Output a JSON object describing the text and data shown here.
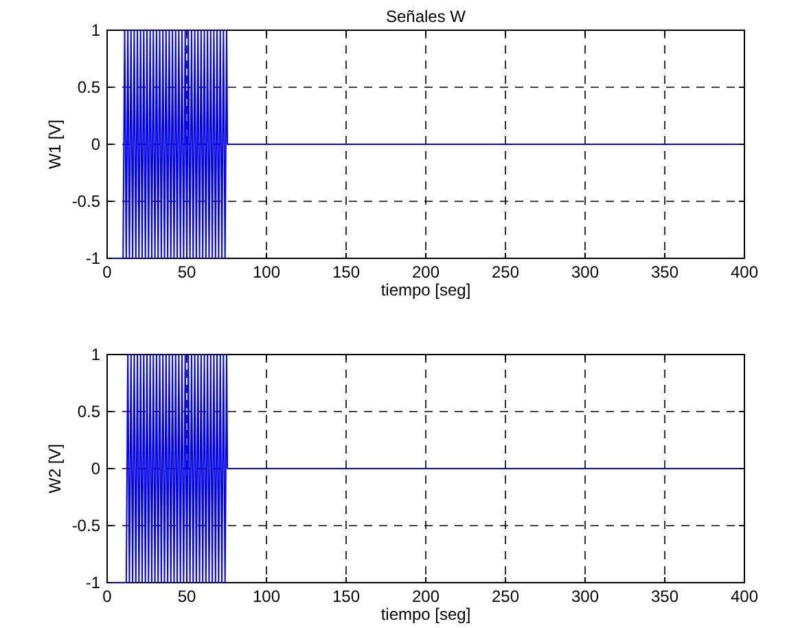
{
  "chart_data": [
    {
      "type": "line",
      "title": "Señales W",
      "xlabel": "tiempo [seg]",
      "ylabel": "W1 [V]",
      "xlim": [
        0,
        400
      ],
      "ylim": [
        -1,
        1
      ],
      "xticks": [
        0,
        50,
        100,
        150,
        200,
        250,
        300,
        350,
        400
      ],
      "yticks": [
        -1,
        -0.5,
        0,
        0.5,
        1
      ],
      "grid": true,
      "series": [
        {
          "color": "#0000ff",
          "x": [
            0,
            10,
            11,
            12,
            13,
            14,
            15,
            16,
            17,
            18,
            19,
            20,
            21,
            22,
            23,
            24,
            25,
            26,
            27,
            28,
            29,
            30,
            31,
            32,
            33,
            34,
            35,
            36,
            37,
            38,
            39,
            40,
            41,
            42,
            43,
            44,
            45,
            46,
            47,
            48,
            49,
            50,
            51,
            52,
            53,
            54,
            55,
            56,
            57,
            58,
            59,
            60,
            61,
            62,
            63,
            64,
            65,
            66,
            67,
            68,
            69,
            70,
            71,
            72,
            73,
            74,
            75,
            75.5,
            400
          ],
          "values": [
            -1,
            -1,
            1,
            -1,
            1,
            -1,
            1,
            -1,
            1,
            -1,
            1,
            -1,
            1,
            -1,
            1,
            -1,
            1,
            -1,
            1,
            -1,
            1,
            -1,
            1,
            -1,
            1,
            -1,
            1,
            -1,
            1,
            -1,
            1,
            -1,
            1,
            -1,
            1,
            -1,
            1,
            -1,
            1,
            -1,
            1,
            -1,
            1,
            -1,
            1,
            -1,
            1,
            -1,
            1,
            -1,
            1,
            -1,
            1,
            -1,
            1,
            -1,
            1,
            -1,
            1,
            -1,
            1,
            -1,
            1,
            -1,
            1,
            -1,
            1,
            0,
            0
          ]
        }
      ]
    },
    {
      "type": "line",
      "xlabel": "tiempo [seg]",
      "ylabel": "W2 [V]",
      "xlim": [
        0,
        400
      ],
      "ylim": [
        -1,
        1
      ],
      "xticks": [
        0,
        50,
        100,
        150,
        200,
        250,
        300,
        350,
        400
      ],
      "yticks": [
        -1,
        -0.5,
        0,
        0.5,
        1
      ],
      "grid": true,
      "series": [
        {
          "color": "#0000ff",
          "x": [
            0,
            12,
            13,
            14,
            15,
            16,
            17,
            18,
            19,
            20,
            21,
            22,
            23,
            24,
            25,
            26,
            27,
            28,
            29,
            30,
            31,
            32,
            33,
            34,
            35,
            36,
            37,
            38,
            39,
            40,
            41,
            42,
            43,
            44,
            45,
            46,
            47,
            48,
            49,
            50,
            51,
            52,
            53,
            54,
            55,
            56,
            57,
            58,
            59,
            60,
            61,
            62,
            63,
            64,
            65,
            66,
            67,
            68,
            69,
            70,
            71,
            72,
            73,
            74,
            75,
            75.5,
            400
          ],
          "values": [
            -1,
            -1,
            1,
            -1,
            1,
            -1,
            1,
            -1,
            1,
            -1,
            1,
            -1,
            1,
            -1,
            1,
            -1,
            1,
            -1,
            1,
            -1,
            1,
            -1,
            1,
            -1,
            1,
            -1,
            1,
            -1,
            1,
            -1,
            1,
            -1,
            1,
            -1,
            1,
            -1,
            1,
            -1,
            1,
            -1,
            1,
            -1,
            1,
            -1,
            1,
            -1,
            1,
            -1,
            1,
            -1,
            1,
            -1,
            1,
            -1,
            1,
            -1,
            1,
            -1,
            1,
            -1,
            1,
            -1,
            1,
            -1,
            1,
            0,
            0
          ]
        }
      ]
    }
  ]
}
